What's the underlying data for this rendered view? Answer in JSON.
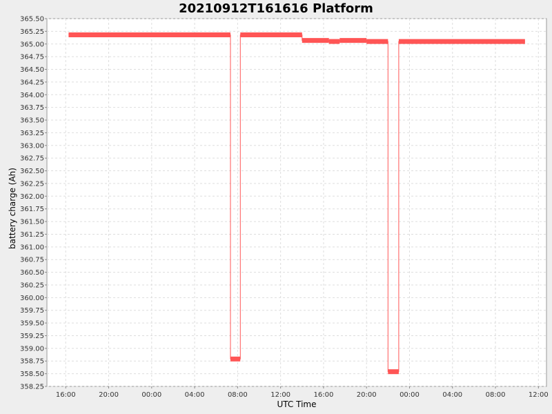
{
  "chart_data": {
    "type": "line",
    "title": "20210912T161616 Platform",
    "xlabel": "UTC Time",
    "ylabel": "battery charge (Ah)",
    "grid": true,
    "legend": "none",
    "line_color": "#ff5555",
    "ylim": [
      358.25,
      365.5
    ],
    "xlim": [
      "2021-09-12T14:15",
      "2021-09-14T12:45"
    ],
    "y_ticks": [
      "358.25",
      "358.50",
      "358.75",
      "359.00",
      "359.25",
      "359.50",
      "359.75",
      "360.00",
      "360.25",
      "360.50",
      "360.75",
      "361.00",
      "361.25",
      "361.50",
      "361.75",
      "362.00",
      "362.25",
      "362.50",
      "362.75",
      "363.00",
      "363.25",
      "363.50",
      "363.75",
      "364.00",
      "364.25",
      "364.50",
      "364.75",
      "365.00",
      "365.25",
      "365.50"
    ],
    "x_ticks": [
      {
        "t": "2021-09-12T16:00",
        "label": "16:00"
      },
      {
        "t": "2021-09-12T20:00",
        "label": "20:00"
      },
      {
        "t": "2021-09-13T00:00",
        "label": "00:00"
      },
      {
        "t": "2021-09-13T04:00",
        "label": "04:00"
      },
      {
        "t": "2021-09-13T08:00",
        "label": "08:00"
      },
      {
        "t": "2021-09-13T12:00",
        "label": "12:00"
      },
      {
        "t": "2021-09-13T16:00",
        "label": "16:00"
      },
      {
        "t": "2021-09-13T20:00",
        "label": "20:00"
      },
      {
        "t": "2021-09-14T00:00",
        "label": "00:00"
      },
      {
        "t": "2021-09-14T04:00",
        "label": "04:00"
      },
      {
        "t": "2021-09-14T08:00",
        "label": "08:00"
      },
      {
        "t": "2021-09-14T12:00",
        "label": "12:00"
      }
    ],
    "series": [
      {
        "points": [
          {
            "x": "2021-09-12T16:16",
            "y": 365.18
          },
          {
            "x": "2021-09-13T07:20",
            "y": 365.18
          },
          {
            "x": "2021-09-13T07:20",
            "y": 358.79
          },
          {
            "x": "2021-09-13T08:15",
            "y": 358.79
          },
          {
            "x": "2021-09-13T08:15",
            "y": 365.18
          },
          {
            "x": "2021-09-13T14:00",
            "y": 365.18
          },
          {
            "x": "2021-09-13T14:00",
            "y": 365.07
          },
          {
            "x": "2021-09-13T16:30",
            "y": 365.07
          },
          {
            "x": "2021-09-13T16:30",
            "y": 365.05
          },
          {
            "x": "2021-09-13T17:30",
            "y": 365.05
          },
          {
            "x": "2021-09-13T17:30",
            "y": 365.07
          },
          {
            "x": "2021-09-13T20:00",
            "y": 365.07
          },
          {
            "x": "2021-09-13T20:00",
            "y": 365.05
          },
          {
            "x": "2021-09-13T22:00",
            "y": 365.05
          },
          {
            "x": "2021-09-13T22:00",
            "y": 358.54
          },
          {
            "x": "2021-09-13T23:00",
            "y": 358.54
          },
          {
            "x": "2021-09-13T23:00",
            "y": 365.05
          },
          {
            "x": "2021-09-14T10:45",
            "y": 365.05
          }
        ]
      }
    ]
  }
}
